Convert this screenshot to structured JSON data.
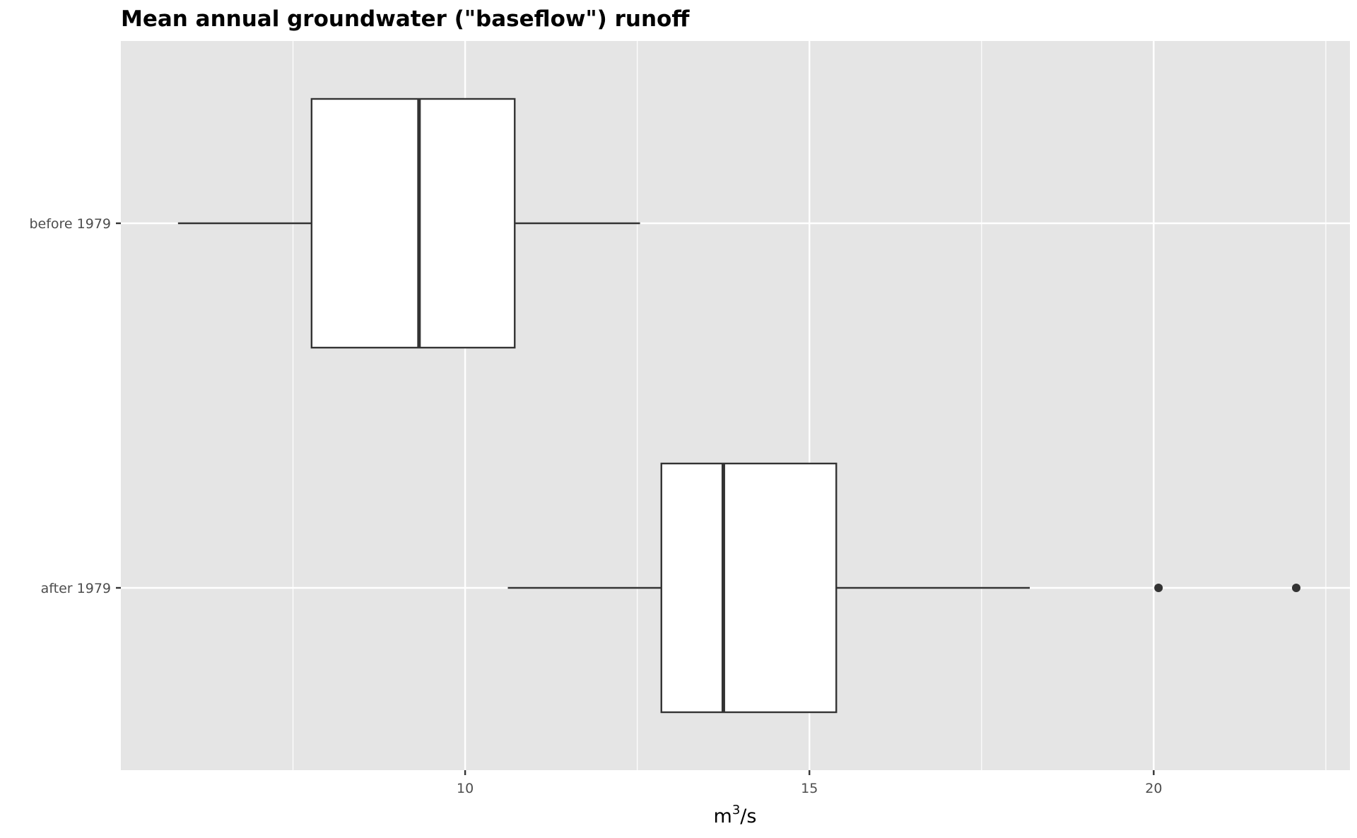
{
  "chart_data": {
    "type": "boxplot",
    "orientation": "horizontal",
    "title": "Mean annual groundwater (\"baseflow\") runoff",
    "xlabel": {
      "base": "m",
      "sup": "3",
      "suffix": "/s"
    },
    "ylabel": "",
    "xlim": [
      5.0,
      22.85
    ],
    "x_ticks": [
      10,
      15,
      20
    ],
    "x_minor": [
      7.5,
      12.5,
      17.5,
      22.5
    ],
    "grid": true,
    "background": "#e5e5e5",
    "grid_color": "#ffffff",
    "box_fill": "#ffffff",
    "box_stroke": "#333333",
    "categories": [
      "before 1979",
      "after 1979"
    ],
    "boxes": [
      {
        "category": "before 1979",
        "whisker_low": 5.83,
        "q1": 7.77,
        "median": 9.33,
        "q3": 10.72,
        "whisker_high": 12.54,
        "outliers": []
      },
      {
        "category": "after 1979",
        "whisker_low": 10.62,
        "q1": 12.85,
        "median": 13.75,
        "q3": 15.39,
        "whisker_high": 18.2,
        "outliers": [
          20.07,
          22.07
        ]
      }
    ]
  }
}
